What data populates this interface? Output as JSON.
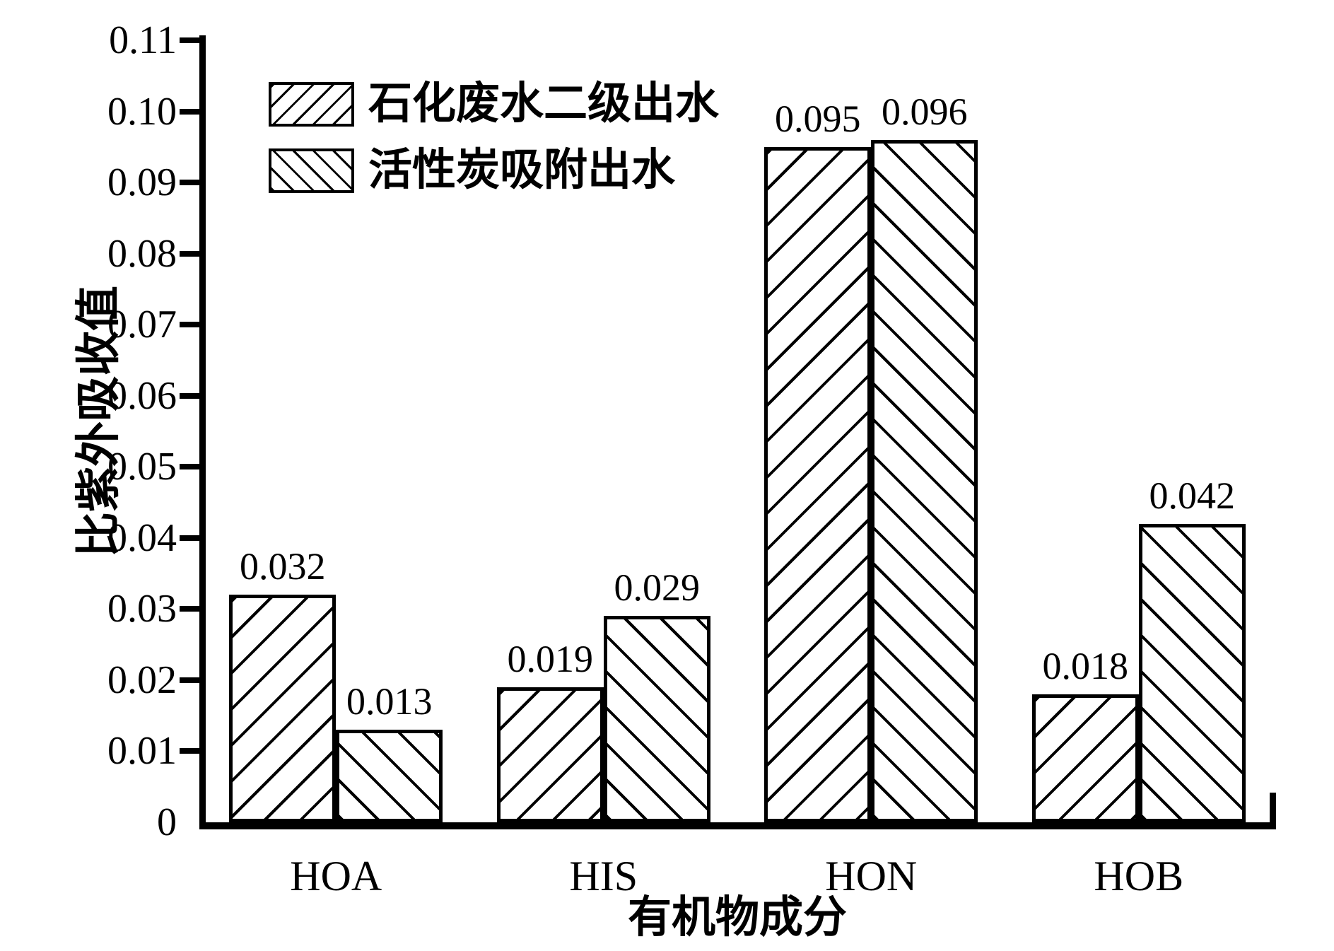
{
  "chart_data": {
    "type": "bar",
    "title": "",
    "xlabel": "有机物成分",
    "ylabel": "比紫外吸收值",
    "categories": [
      "HOA",
      "HIS",
      "HON",
      "HOB"
    ],
    "series": [
      {
        "name": "石化废水二级出水",
        "hatch": "forward-slash",
        "values": [
          0.032,
          0.019,
          0.095,
          0.018
        ],
        "labels": [
          "0.032",
          "0.019",
          "0.095",
          "0.018"
        ]
      },
      {
        "name": "活性炭吸附出水",
        "hatch": "back-slash",
        "values": [
          0.013,
          0.029,
          0.096,
          0.042
        ],
        "labels": [
          "0.013",
          "0.029",
          "0.096",
          "0.042"
        ]
      }
    ],
    "ylim": [
      0,
      0.11
    ],
    "y_ticks": [
      {
        "value": 0,
        "label": "0"
      },
      {
        "value": 0.01,
        "label": "0.01"
      },
      {
        "value": 0.02,
        "label": "0.02"
      },
      {
        "value": 0.03,
        "label": "0.03"
      },
      {
        "value": 0.04,
        "label": "0.04"
      },
      {
        "value": 0.05,
        "label": "0.05"
      },
      {
        "value": 0.06,
        "label": "0.06"
      },
      {
        "value": 0.07,
        "label": "0.07"
      },
      {
        "value": 0.08,
        "label": "0.08"
      },
      {
        "value": 0.09,
        "label": "0.09"
      },
      {
        "value": 0.1,
        "label": "0.10"
      },
      {
        "value": 0.11,
        "label": "0.11"
      }
    ],
    "grid": false,
    "legend_position": "top-left",
    "colors": {
      "foreground": "#000000",
      "background": "#ffffff"
    }
  }
}
